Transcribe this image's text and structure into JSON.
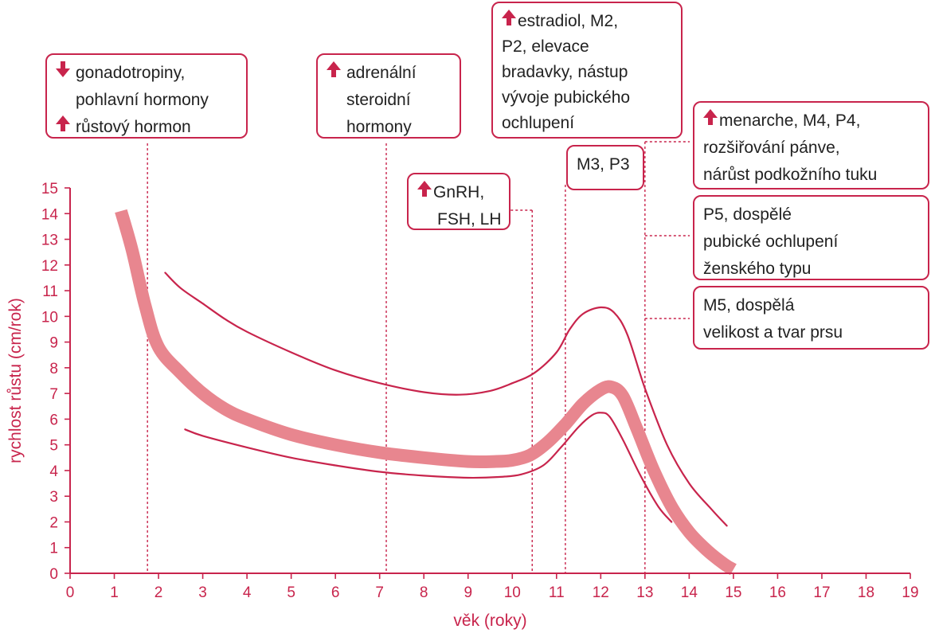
{
  "colors": {
    "accent": "#c8244c",
    "band": "#e8868f",
    "text": "#222222"
  },
  "chart_data": {
    "type": "line",
    "xlabel": "věk (roky)",
    "ylabel": "rychlost růstu (cm/rok)",
    "xlim": [
      0,
      19
    ],
    "ylim": [
      0,
      15
    ],
    "x_ticks": [
      "0",
      "1",
      "2",
      "3",
      "4",
      "5",
      "6",
      "7",
      "8",
      "9",
      "10",
      "11",
      "12",
      "13",
      "14",
      "15",
      "16",
      "17",
      "18",
      "19"
    ],
    "y_ticks": [
      "0",
      "1",
      "2",
      "3",
      "4",
      "5",
      "6",
      "7",
      "8",
      "9",
      "10",
      "11",
      "12",
      "13",
      "14",
      "15"
    ],
    "grid": false,
    "series": [
      {
        "role": "band",
        "x": [
          1.15,
          1.4,
          1.7,
          2.0,
          2.5,
          3.0,
          3.5,
          4.0,
          5.0,
          6.0,
          7.0,
          8.0,
          9.0,
          9.6,
          10.0,
          10.4,
          10.8,
          11.2,
          11.6,
          12.0,
          12.25,
          12.5,
          12.8,
          13.2,
          13.6,
          14.0,
          14.4,
          14.8,
          15.0
        ],
        "y": [
          14.1,
          12.6,
          10.4,
          8.8,
          7.8,
          7.0,
          6.4,
          6.0,
          5.4,
          5.0,
          4.7,
          4.5,
          4.35,
          4.35,
          4.4,
          4.6,
          5.1,
          5.8,
          6.6,
          7.15,
          7.25,
          6.9,
          5.7,
          4.0,
          2.6,
          1.6,
          0.9,
          0.35,
          0.15
        ]
      },
      {
        "role": "upper",
        "x": [
          2.15,
          2.5,
          3.0,
          3.5,
          4.0,
          5.0,
          6.0,
          7.0,
          8.0,
          8.8,
          9.5,
          10.0,
          10.5,
          11.0,
          11.3,
          11.6,
          12.0,
          12.3,
          12.6,
          13.0,
          13.5,
          14.0,
          14.5,
          14.85
        ],
        "y": [
          11.7,
          11.1,
          10.5,
          9.9,
          9.4,
          8.6,
          7.9,
          7.4,
          7.05,
          6.95,
          7.1,
          7.4,
          7.8,
          8.6,
          9.5,
          10.1,
          10.35,
          10.15,
          9.3,
          7.2,
          5.0,
          3.5,
          2.5,
          1.85
        ]
      },
      {
        "role": "lower",
        "x": [
          2.6,
          3.0,
          4.0,
          5.0,
          6.0,
          7.0,
          8.0,
          9.0,
          9.7,
          10.2,
          10.7,
          11.1,
          11.5,
          11.8,
          12.0,
          12.2,
          12.5,
          12.9,
          13.3,
          13.6
        ],
        "y": [
          5.6,
          5.35,
          4.9,
          4.5,
          4.2,
          3.95,
          3.8,
          3.72,
          3.75,
          3.85,
          4.2,
          4.9,
          5.7,
          6.15,
          6.25,
          6.1,
          5.2,
          3.8,
          2.6,
          2.0
        ]
      }
    ],
    "markers": [
      {
        "x": 1.75,
        "label": "gonadotropiny pohlavní hormony / růstový hormon"
      },
      {
        "x": 7.15,
        "label": "adrenální steroidní hormony"
      },
      {
        "x": 10.45,
        "label": "GnRH, FSH, LH"
      },
      {
        "x": 11.2,
        "label": "M3, P3 / estradiol"
      },
      {
        "x": 13.0,
        "label": "menarche / P5 / M5"
      }
    ]
  },
  "annotations": [
    {
      "id": "gonadotropiny",
      "lines": [
        {
          "arrow": "down",
          "text": "gonadotropiny,"
        },
        {
          "arrow": "",
          "text": "pohlavní hormony"
        },
        {
          "arrow": "up",
          "text": "růstový hormon"
        }
      ]
    },
    {
      "id": "adrenalni",
      "lines": [
        {
          "arrow": "up",
          "text": "adrenální"
        },
        {
          "arrow": "",
          "text": "steroidní"
        },
        {
          "arrow": "",
          "text": "hormony"
        }
      ]
    },
    {
      "id": "gnrh",
      "lines": [
        {
          "arrow": "up",
          "text": "GnRH,"
        },
        {
          "arrow": "",
          "text": "FSH, LH"
        }
      ]
    },
    {
      "id": "estradiol",
      "lines": [
        {
          "arrow": "up",
          "text": "estradiol, M2,"
        },
        {
          "arrow": "",
          "text": "P2, elevace"
        },
        {
          "arrow": "",
          "text": "bradavky, nástup"
        },
        {
          "arrow": "",
          "text": "vývoje pubického"
        },
        {
          "arrow": "",
          "text": "ochlupení"
        }
      ]
    },
    {
      "id": "m3p3",
      "lines": [
        {
          "arrow": "",
          "text": "M3, P3"
        }
      ]
    },
    {
      "id": "menarche",
      "lines": [
        {
          "arrow": "up",
          "text": "menarche, M4, P4,"
        },
        {
          "arrow": "",
          "text": "rozšiřování pánve,"
        },
        {
          "arrow": "",
          "text": "nárůst podkožního tuku"
        }
      ]
    },
    {
      "id": "p5",
      "lines": [
        {
          "arrow": "",
          "text": "P5, dospělé"
        },
        {
          "arrow": "",
          "text": "pubické ochlupení"
        },
        {
          "arrow": "",
          "text": "ženského typu"
        }
      ]
    },
    {
      "id": "m5",
      "lines": [
        {
          "arrow": "",
          "text": "M5, dospělá"
        },
        {
          "arrow": "",
          "text": "velikost a tvar prsu"
        }
      ]
    }
  ]
}
